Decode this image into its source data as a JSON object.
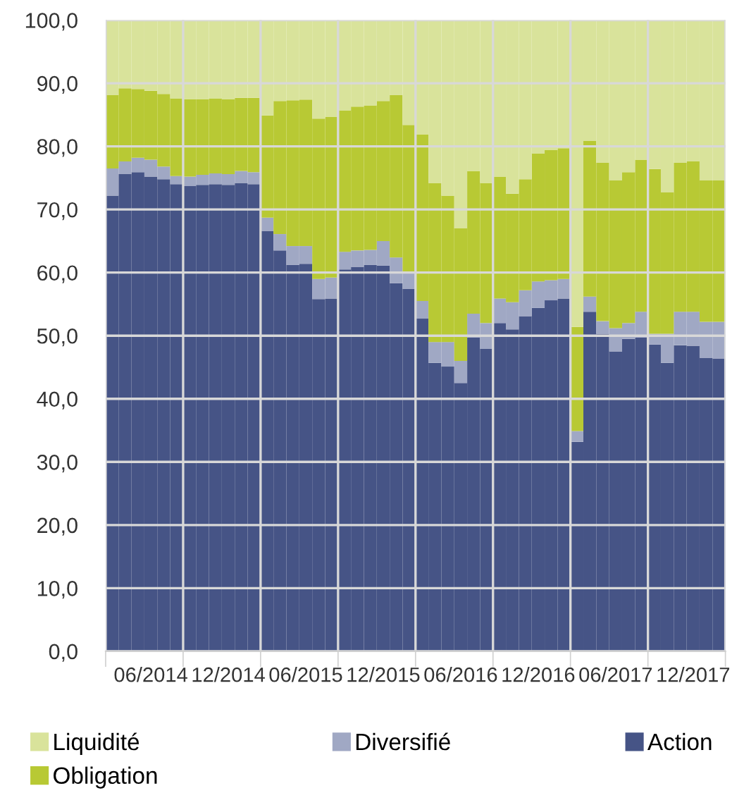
{
  "chart_data": {
    "type": "bar",
    "stacked": true,
    "categories": [
      null,
      null,
      null,
      "06/2014",
      null,
      null,
      null,
      null,
      null,
      "12/2014",
      null,
      null,
      null,
      null,
      null,
      "06/2015",
      null,
      null,
      null,
      null,
      null,
      "12/2015",
      null,
      null,
      null,
      null,
      null,
      "06/2016",
      null,
      null,
      null,
      null,
      null,
      "12/2016",
      null,
      null,
      null,
      null,
      null,
      "06/2017",
      null,
      null,
      null,
      null,
      null,
      "12/2017",
      null,
      null
    ],
    "series": [
      {
        "name": "Action",
        "color": "#465486",
        "values": [
          72.2,
          75.6,
          75.9,
          75.2,
          74.8,
          74.0,
          73.7,
          73.9,
          74.0,
          73.9,
          74.2,
          74.0,
          66.6,
          63.5,
          61.2,
          61.4,
          55.8,
          55.9,
          60.5,
          60.9,
          61.2,
          61.1,
          58.3,
          57.4,
          52.7,
          45.7,
          45.1,
          42.5,
          49.7,
          47.9,
          52.0,
          51.0,
          53.1,
          54.4,
          55.6,
          55.9,
          33.2,
          53.8,
          50.3,
          47.5,
          49.5,
          49.7,
          48.6,
          45.7,
          48.5,
          48.4,
          46.5,
          46.4
        ]
      },
      {
        "name": "Diversifié",
        "color": "#a0a8c4",
        "values": [
          4.3,
          2.0,
          2.3,
          2.7,
          2.0,
          1.3,
          1.5,
          1.6,
          1.7,
          1.7,
          1.9,
          1.9,
          2.1,
          2.6,
          3.0,
          2.8,
          3.2,
          3.3,
          2.8,
          2.6,
          2.4,
          3.9,
          4.1,
          2.5,
          2.8,
          3.3,
          3.9,
          3.5,
          3.8,
          4.1,
          3.9,
          4.3,
          4.1,
          4.2,
          3.2,
          3.1,
          1.7,
          2.4,
          2.0,
          3.7,
          2.5,
          4.1,
          1.7,
          4.6,
          5.3,
          5.4,
          5.7,
          5.8
        ]
      },
      {
        "name": "Obligation",
        "color": "#b8c934",
        "values": [
          11.6,
          11.6,
          10.9,
          10.9,
          11.5,
          12.3,
          12.3,
          12.0,
          11.9,
          11.9,
          11.6,
          11.8,
          16.2,
          21.1,
          23.1,
          23.2,
          25.4,
          25.5,
          22.4,
          22.8,
          22.9,
          22.2,
          25.7,
          23.5,
          26.4,
          25.2,
          23.2,
          21.0,
          22.6,
          22.2,
          19.3,
          17.2,
          17.6,
          20.3,
          20.6,
          20.7,
          16.5,
          24.7,
          25.1,
          23.4,
          23.9,
          24.1,
          26.1,
          22.4,
          23.6,
          23.8,
          22.4,
          22.4
        ]
      },
      {
        "name": "Liquidité",
        "color": "#d9e39b",
        "values": [
          11.9,
          10.8,
          10.9,
          11.2,
          11.7,
          12.4,
          12.5,
          12.5,
          12.4,
          12.5,
          12.3,
          12.3,
          15.1,
          12.8,
          12.7,
          12.6,
          15.6,
          15.3,
          14.3,
          13.7,
          13.5,
          12.8,
          11.9,
          16.6,
          18.1,
          25.8,
          27.8,
          33.0,
          23.9,
          25.8,
          24.8,
          27.5,
          25.2,
          21.1,
          20.6,
          20.3,
          48.6,
          19.1,
          22.6,
          25.4,
          24.1,
          22.1,
          23.6,
          27.3,
          22.6,
          22.4,
          25.4,
          25.4
        ]
      }
    ],
    "ylim": [
      0,
      100
    ],
    "yticks": [
      {
        "value": 0,
        "label": "0,0"
      },
      {
        "value": 10,
        "label": "10,0"
      },
      {
        "value": 20,
        "label": "20,0"
      },
      {
        "value": 30,
        "label": "30,0"
      },
      {
        "value": 40,
        "label": "40,0"
      },
      {
        "value": 50,
        "label": "50,0"
      },
      {
        "value": 60,
        "label": "60,0"
      },
      {
        "value": 70,
        "label": "70,0"
      },
      {
        "value": 80,
        "label": "80,0"
      },
      {
        "value": 90,
        "label": "90,0"
      },
      {
        "value": 100,
        "label": "100,0"
      }
    ],
    "grid": true,
    "legend": "bottom"
  }
}
